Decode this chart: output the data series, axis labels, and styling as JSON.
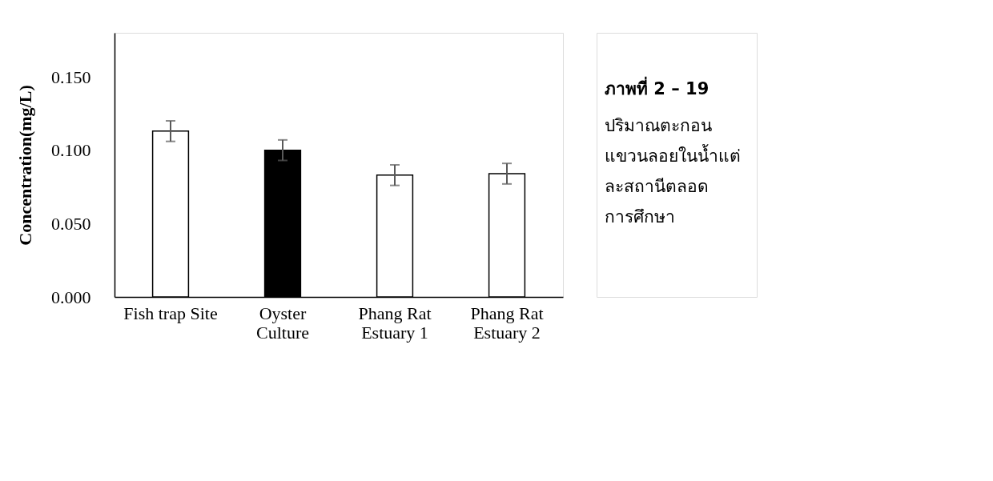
{
  "chart_data": {
    "type": "bar",
    "ylabel": "Concentration(mg/L)",
    "categories": [
      "Fish trap Site",
      "Oyster Culture",
      "Phang Rat Estuary 1",
      "Phang Rat Estuary 2"
    ],
    "values": [
      0.113,
      0.1,
      0.083,
      0.084
    ],
    "errors": [
      0.007,
      0.007,
      0.007,
      0.007
    ],
    "colors": [
      "#ffffff",
      "#000000",
      "#ffffff",
      "#ffffff"
    ],
    "ylim": [
      0,
      0.18
    ],
    "yticks": [
      {
        "value": 0,
        "label": "0.000"
      },
      {
        "value": 0.05,
        "label": "0.050"
      },
      {
        "value": 0.1,
        "label": "0.100"
      },
      {
        "value": 0.15,
        "label": "0.150"
      }
    ],
    "grid": false,
    "annotations": [
      "ภาพที่ 2 – 19",
      "ปริมาณตะกอน\nแขวนลอยในน้ำแต่\nละสถานีตลอด\nการศึกษา"
    ]
  }
}
